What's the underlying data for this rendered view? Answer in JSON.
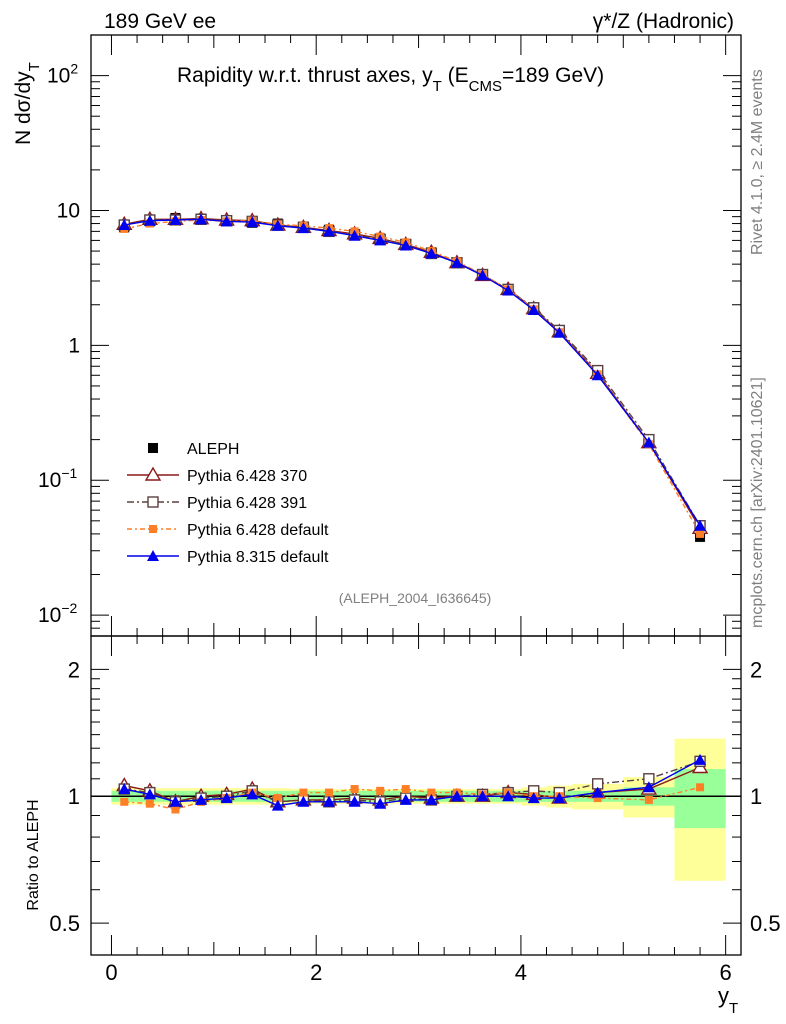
{
  "header": {
    "left": "189 GeV ee",
    "right": "γ*/Z (Hadronic)"
  },
  "side_labels": {
    "rivet": "Rivet 4.1.0, ≥ 2.4M events",
    "mcplots": "mcplots.cern.ch [arXiv:2401.10621]"
  },
  "colors": {
    "data": "#000000",
    "p370": "#8b1a1a",
    "p391": "#5a4040",
    "p_default": "#ff7f27",
    "p8": "#0000ee",
    "band_stat": "#99ff99",
    "band_syst": "#ffff99"
  },
  "chart_data": [
    {
      "type": "line",
      "title_main": "Rapidity w.r.t. thrust axes, y",
      "title_sub": "T",
      "title_rest": " (E",
      "title_cms": "CMS",
      "title_end": "=189 GeV)",
      "ylabel": "N  dσ/dy",
      "ylabel_sub": "T",
      "yscale": "log",
      "ylim": [
        0.007,
        200
      ],
      "xlim": [
        -0.2,
        6.15
      ],
      "y_ticks": [
        {
          "value": 0.01,
          "label": "10",
          "exp": "−2"
        },
        {
          "value": 0.1,
          "label": "10",
          "exp": "−1"
        },
        {
          "value": 1,
          "label": "1",
          "exp": ""
        },
        {
          "value": 10,
          "label": "10",
          "exp": ""
        },
        {
          "value": 100,
          "label": "10",
          "exp": "2"
        }
      ],
      "watermark": "(ALEPH_2004_I636645)",
      "legend_position": "bottom-left",
      "x": [
        0.125,
        0.375,
        0.625,
        0.875,
        1.125,
        1.375,
        1.625,
        1.875,
        2.125,
        2.375,
        2.625,
        2.875,
        3.125,
        3.375,
        3.625,
        3.875,
        4.125,
        4.375,
        4.75,
        5.25,
        5.75
      ],
      "series": [
        {
          "name": "ALEPH",
          "style": "data",
          "values": [
            7.5,
            8.3,
            8.8,
            8.7,
            8.4,
            8.1,
            8.0,
            7.6,
            7.2,
            6.7,
            6.2,
            5.6,
            4.9,
            4.1,
            3.3,
            2.55,
            1.85,
            1.25,
            0.62,
            0.19,
            0.038
          ]
        },
        {
          "name": "Pythia 6.428 370",
          "style": "p370",
          "values": [
            7.9,
            8.6,
            8.6,
            8.7,
            8.5,
            8.4,
            7.8,
            7.5,
            7.1,
            6.7,
            6.2,
            5.6,
            4.9,
            4.1,
            3.3,
            2.6,
            1.87,
            1.26,
            0.62,
            0.19,
            0.044
          ]
        },
        {
          "name": "Pythia 6.428 391",
          "style": "p391",
          "values": [
            7.8,
            8.5,
            8.5,
            8.6,
            8.4,
            8.3,
            7.8,
            7.5,
            7.0,
            6.6,
            6.1,
            5.6,
            4.8,
            4.1,
            3.35,
            2.6,
            1.9,
            1.29,
            0.65,
            0.2,
            0.046
          ]
        },
        {
          "name": "Pythia 6.428 default",
          "style": "p_default",
          "values": [
            7.3,
            8.0,
            8.3,
            8.5,
            8.3,
            8.4,
            7.9,
            7.7,
            7.4,
            7.0,
            6.4,
            5.8,
            5.0,
            4.2,
            3.35,
            2.6,
            1.85,
            1.25,
            0.61,
            0.185,
            0.04
          ]
        },
        {
          "name": "Pythia 8.315 default",
          "style": "p8",
          "values": [
            7.8,
            8.4,
            8.5,
            8.6,
            8.3,
            8.2,
            7.7,
            7.4,
            7.0,
            6.5,
            6.0,
            5.5,
            4.8,
            4.1,
            3.3,
            2.55,
            1.83,
            1.24,
            0.6,
            0.19,
            0.046
          ]
        }
      ]
    },
    {
      "type": "line",
      "ylabel": "Ratio to ALEPH",
      "xlabel": "y",
      "xlabel_sub": "T",
      "yscale": "log",
      "ylim": [
        0.42,
        2.4
      ],
      "xlim": [
        -0.2,
        6.15
      ],
      "y_ticks": [
        {
          "value": 0.5,
          "label": "0.5"
        },
        {
          "value": 1,
          "label": "1"
        },
        {
          "value": 2,
          "label": "2"
        }
      ],
      "x_ticks": [
        {
          "value": 0,
          "label": "0"
        },
        {
          "value": 2,
          "label": "2"
        },
        {
          "value": 4,
          "label": "4"
        },
        {
          "value": 6,
          "label": "6"
        }
      ],
      "bins": [
        [
          0,
          0.25
        ],
        [
          0.25,
          0.5
        ],
        [
          0.5,
          0.75
        ],
        [
          0.75,
          1.0
        ],
        [
          1.0,
          1.25
        ],
        [
          1.25,
          1.5
        ],
        [
          1.5,
          1.75
        ],
        [
          1.75,
          2.0
        ],
        [
          2.0,
          2.25
        ],
        [
          2.25,
          2.5
        ],
        [
          2.5,
          2.75
        ],
        [
          2.75,
          3.0
        ],
        [
          3.0,
          3.25
        ],
        [
          3.25,
          3.5
        ],
        [
          3.5,
          3.75
        ],
        [
          3.75,
          4.0
        ],
        [
          4.0,
          4.25
        ],
        [
          4.25,
          4.5
        ],
        [
          4.5,
          5.0
        ],
        [
          5.0,
          5.5
        ],
        [
          5.5,
          6.0
        ]
      ],
      "band_stat": [
        0.03,
        0.03,
        0.03,
        0.03,
        0.03,
        0.03,
        0.03,
        0.03,
        0.03,
        0.03,
        0.03,
        0.03,
        0.03,
        0.03,
        0.03,
        0.03,
        0.03,
        0.03,
        0.03,
        0.05,
        0.16
      ],
      "band_syst": [
        0.045,
        0.045,
        0.045,
        0.045,
        0.045,
        0.045,
        0.045,
        0.04,
        0.04,
        0.04,
        0.04,
        0.04,
        0.04,
        0.04,
        0.04,
        0.04,
        0.05,
        0.06,
        0.07,
        0.11,
        0.37
      ],
      "x": [
        0.125,
        0.375,
        0.625,
        0.875,
        1.125,
        1.375,
        1.625,
        1.875,
        2.125,
        2.375,
        2.625,
        2.875,
        3.125,
        3.375,
        3.625,
        3.875,
        4.125,
        4.375,
        4.75,
        5.25,
        5.75
      ],
      "series": [
        {
          "name": "Pythia 6.428 370",
          "style": "p370",
          "values": [
            1.06,
            1.03,
            0.97,
            1.0,
            1.01,
            1.04,
            0.97,
            0.98,
            0.98,
            0.99,
            0.98,
            1.0,
            0.99,
            1.0,
            1.0,
            1.02,
            1.01,
            0.99,
            1.02,
            1.04,
            1.17
          ]
        },
        {
          "name": "Pythia 6.428 391",
          "style": "p391",
          "values": [
            1.04,
            1.02,
            0.97,
            0.99,
            1.0,
            1.03,
            0.97,
            0.98,
            0.97,
            0.98,
            0.97,
            0.99,
            0.98,
            1.0,
            1.01,
            1.02,
            1.03,
            1.02,
            1.07,
            1.1,
            1.21
          ]
        },
        {
          "name": "Pythia 6.428 default",
          "style": "p_default",
          "values": [
            0.97,
            0.96,
            0.93,
            0.97,
            0.99,
            1.02,
            0.99,
            1.02,
            1.02,
            1.04,
            1.03,
            1.04,
            1.02,
            1.02,
            1.01,
            1.02,
            1.0,
            1.0,
            0.99,
            0.98,
            1.05
          ]
        },
        {
          "name": "Pythia 8.315 default",
          "style": "p8",
          "values": [
            1.04,
            1.01,
            0.97,
            0.98,
            0.99,
            1.01,
            0.95,
            0.97,
            0.97,
            0.97,
            0.96,
            0.98,
            0.98,
            1.0,
            1.0,
            1.0,
            0.99,
            0.99,
            1.02,
            1.05,
            1.22
          ]
        }
      ]
    }
  ]
}
